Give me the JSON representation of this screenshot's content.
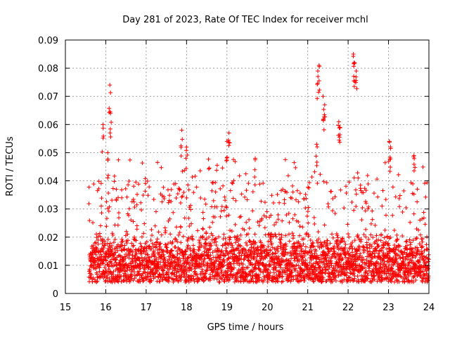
{
  "chart_data": {
    "type": "scatter",
    "title": "Day 281 of 2023, Rate Of TEC Index for receiver mchl",
    "xlabel": "GPS time / hours",
    "ylabel": "ROTI / TECUs",
    "xlim": [
      15,
      24
    ],
    "ylim": [
      0,
      0.09
    ],
    "xticks": [
      "15",
      "16",
      "17",
      "18",
      "19",
      "20",
      "21",
      "22",
      "23",
      "24"
    ],
    "yticks": [
      "0",
      "0.01",
      "0.02",
      "0.03",
      "0.04",
      "0.05",
      "0.06",
      "0.07",
      "0.08",
      "0.09"
    ],
    "grid": true,
    "marker": "+",
    "marker_color": "#ff0000",
    "x_start": 15.58,
    "x_end": 24.0,
    "typical_range": [
      0.004,
      0.022
    ],
    "peaks": [
      {
        "x": 15.93,
        "y": 0.06
      },
      {
        "x": 16.1,
        "y": 0.074
      },
      {
        "x": 16.12,
        "y": 0.064
      },
      {
        "x": 16.05,
        "y": 0.05
      },
      {
        "x": 17.88,
        "y": 0.058
      },
      {
        "x": 18.0,
        "y": 0.052
      },
      {
        "x": 19.05,
        "y": 0.057
      },
      {
        "x": 19.0,
        "y": 0.054
      },
      {
        "x": 19.7,
        "y": 0.048
      },
      {
        "x": 21.28,
        "y": 0.081
      },
      {
        "x": 21.25,
        "y": 0.079
      },
      {
        "x": 21.38,
        "y": 0.07
      },
      {
        "x": 21.42,
        "y": 0.067
      },
      {
        "x": 21.77,
        "y": 0.061
      },
      {
        "x": 21.8,
        "y": 0.059
      },
      {
        "x": 22.13,
        "y": 0.085
      },
      {
        "x": 22.15,
        "y": 0.082
      },
      {
        "x": 22.2,
        "y": 0.079
      },
      {
        "x": 23.02,
        "y": 0.054
      },
      {
        "x": 23.05,
        "y": 0.052
      },
      {
        "x": 23.63,
        "y": 0.049
      },
      {
        "x": 21.22,
        "y": 0.053
      }
    ]
  }
}
